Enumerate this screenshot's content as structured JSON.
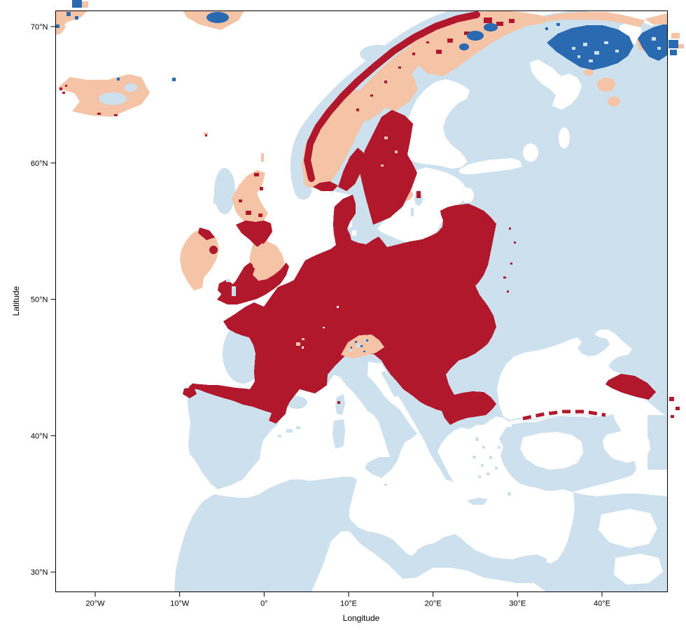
{
  "figure": {
    "kind": "raster distribution map",
    "region": "Europe, North Africa, Near East",
    "title": ""
  },
  "axes": {
    "x": {
      "title": "Longitude",
      "range_deg": [
        -25,
        47.5
      ],
      "ticks": [
        {
          "label": "20°W",
          "deg": -20
        },
        {
          "label": "10°W",
          "deg": -10
        },
        {
          "label": "0°",
          "deg": 0
        },
        {
          "label": "10°E",
          "deg": 10
        },
        {
          "label": "20°E",
          "deg": 20
        },
        {
          "label": "30°E",
          "deg": 30
        },
        {
          "label": "40°E",
          "deg": 40
        }
      ]
    },
    "y": {
      "title": "Latitude",
      "range_deg": [
        28.5,
        71.2
      ],
      "ticks": [
        {
          "label": "70°N",
          "deg": 70
        },
        {
          "label": "60°N",
          "deg": 60
        },
        {
          "label": "50°N",
          "deg": 50
        },
        {
          "label": "40°N",
          "deg": 40
        },
        {
          "label": "30°N",
          "deg": 30
        }
      ]
    }
  },
  "palette": {
    "dark_red": "#b2182b",
    "salmon": "#f5c3a6",
    "light_blue": "#cce0ee",
    "dark_blue": "#2a6ab0",
    "background_sea": "#ffffff",
    "frame": "#000000",
    "text": "#000000"
  },
  "chart_data": {
    "type": "map",
    "projection": "unprojected longitude/latitude",
    "x_axis": {
      "title": "Longitude",
      "tick_labels": [
        "20°W",
        "10°W",
        "0°",
        "10°E",
        "20°E",
        "30°E",
        "40°E"
      ],
      "range": [
        -25,
        47.5
      ]
    },
    "y_axis": {
      "title": "Latitude",
      "tick_labels": [
        "70°N",
        "60°N",
        "50°N",
        "40°N",
        "30°N"
      ],
      "range": [
        28.5,
        71.2
      ]
    },
    "legend_shown": false,
    "classes": [
      {
        "name": "dark-red class",
        "color": "#b2182b",
        "extent": "Core: British Isles (south/east), France, Benelux, Germany, Denmark, Poland, Baltic coast, southern Scandinavia, Alps margins, Carpathians, Balkan uplands, northern Spain, Apennines, west/north Turkey patches, Caucasus coast"
      },
      {
        "name": "light-salmon class",
        "color": "#f5c3a6",
        "extent": "Iceland, Norwegian mountain spine, northern Scandinavia, Scottish Highlands, Pennines, central Ireland, Alps interior, Kola/White Sea fringes"
      },
      {
        "name": "dark-blue class",
        "color": "#2a6ab0",
        "extent": "Kola Peninsula, Arctic Norway patches, far north-eastern (Barents/White Sea) coasts"
      },
      {
        "name": "light-blue class",
        "color": "#cce0ee",
        "extent": "Iberia, North Africa strip, Italy, Greece and Turkish coasts, eastern Europe, European Russia, Finland, Norwegian shelf waters"
      },
      {
        "name": "white",
        "color": "#ffffff",
        "extent": "sea and unclassified land (deserts, central Anatolia, inland seas)"
      }
    ]
  }
}
